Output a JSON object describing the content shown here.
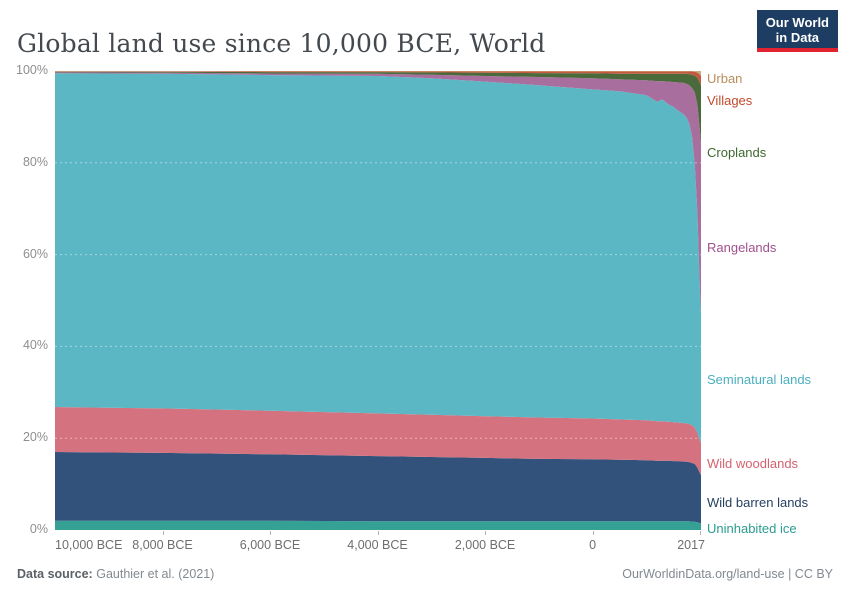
{
  "header": {
    "title": "Global land use since 10,000 BCE, World"
  },
  "logo": {
    "line1": "Our World",
    "line2": "in Data",
    "bg": "#1d3d63",
    "accent": "#e0232e"
  },
  "chart_data": {
    "type": "area",
    "stacked": true,
    "title": "Global land use since 10,000 BCE, World",
    "xlabel": "",
    "ylabel": "",
    "unit": "%",
    "ylim": [
      0,
      100
    ],
    "xlim": [
      -10000,
      2017
    ],
    "grid": "dashed horizontal at 20/40/60/80%",
    "legend_position": "right, colored text labels",
    "x": [
      -10000,
      -8000,
      -6000,
      -4000,
      -3000,
      -2000,
      -1000,
      0,
      500,
      1000,
      1200,
      1300,
      1400,
      1500,
      1600,
      1700,
      1750,
      1800,
      1850,
      1900,
      1950,
      1980,
      2000,
      2017
    ],
    "series": [
      {
        "name": "Uninhabited ice",
        "color": "#35a094",
        "values": [
          2.0,
          2.0,
          2.0,
          1.9,
          1.9,
          1.9,
          1.9,
          1.9,
          1.9,
          1.9,
          1.9,
          1.9,
          1.9,
          1.9,
          1.9,
          1.9,
          1.9,
          1.9,
          1.8,
          1.8,
          1.7,
          1.6,
          1.5,
          1.5
        ]
      },
      {
        "name": "Wild barren lands",
        "color": "#33527b",
        "values": [
          15.0,
          14.8,
          14.5,
          14.2,
          14.0,
          13.8,
          13.6,
          13.5,
          13.4,
          13.3,
          13.2,
          13.2,
          13.2,
          13.1,
          13.1,
          13.0,
          13.0,
          12.9,
          12.8,
          12.6,
          11.9,
          11.2,
          10.8,
          10.5
        ]
      },
      {
        "name": "Wild woodlands",
        "color": "#d5727f",
        "values": [
          9.8,
          9.7,
          9.5,
          9.3,
          9.2,
          9.1,
          9.0,
          8.9,
          8.8,
          8.7,
          8.6,
          8.6,
          8.5,
          8.5,
          8.4,
          8.4,
          8.3,
          8.3,
          8.2,
          8.0,
          7.6,
          7.2,
          7.1,
          7.0
        ]
      },
      {
        "name": "Seminatural lands",
        "color": "#5bb7c4",
        "values": [
          72.7,
          72.9,
          73.1,
          73.5,
          73.3,
          72.9,
          72.4,
          71.7,
          71.5,
          70.85,
          69.6,
          70.1,
          69.2,
          68.7,
          67.9,
          67.2,
          66.6,
          65.4,
          63.0,
          57.5,
          48.0,
          38.0,
          32.0,
          28.0
        ]
      },
      {
        "name": "Rangelands",
        "color": "#a86f9e",
        "values": [
          0.2,
          0.25,
          0.35,
          0.5,
          0.8,
          1.2,
          1.8,
          2.4,
          2.6,
          3.25,
          4.5,
          4.0,
          4.9,
          5.4,
          6.2,
          6.9,
          7.4,
          8.4,
          10.5,
          15.5,
          23.5,
          31.0,
          35.0,
          37.0
        ]
      },
      {
        "name": "Croplands",
        "color": "#4b6a3b",
        "values": [
          0.15,
          0.2,
          0.3,
          0.35,
          0.5,
          0.7,
          0.85,
          1.1,
          1.2,
          1.4,
          1.6,
          1.6,
          1.7,
          1.8,
          1.9,
          2.0,
          2.2,
          2.4,
          2.9,
          3.6,
          5.8,
          8.8,
          10.9,
          12.8
        ]
      },
      {
        "name": "Villages",
        "color": "#c25b3e",
        "values": [
          0.1,
          0.1,
          0.2,
          0.2,
          0.25,
          0.35,
          0.4,
          0.45,
          0.55,
          0.55,
          0.55,
          0.55,
          0.55,
          0.55,
          0.55,
          0.55,
          0.55,
          0.6,
          0.7,
          0.85,
          1.2,
          1.6,
          1.9,
          2.2
        ]
      },
      {
        "name": "Urban",
        "color": "#ccab80",
        "values": [
          0.05,
          0.05,
          0.05,
          0.05,
          0.05,
          0.05,
          0.05,
          0.05,
          0.05,
          0.05,
          0.05,
          0.05,
          0.05,
          0.05,
          0.05,
          0.05,
          0.05,
          0.1,
          0.1,
          0.15,
          0.3,
          0.6,
          0.8,
          1.0
        ]
      }
    ],
    "xticks": [
      -10000,
      -8000,
      -6000,
      -4000,
      -2000,
      0,
      2017
    ],
    "xtick_labels": [
      "10,000 BCE",
      "8,000 BCE",
      "6,000 BCE",
      "4,000 BCE",
      "2,000 BCE",
      "0",
      "2017"
    ],
    "yticks": [
      0,
      20,
      40,
      60,
      80,
      100
    ],
    "ytick_labels": [
      "0%",
      "20%",
      "40%",
      "60%",
      "80%",
      "100%"
    ]
  },
  "legend": {
    "items": [
      {
        "label": "Urban",
        "color": "#b78e5b"
      },
      {
        "label": "Villages",
        "color": "#bf4a2b"
      },
      {
        "label": "Croplands",
        "color": "#3e692f"
      },
      {
        "label": "Rangelands",
        "color": "#a1518f"
      },
      {
        "label": "Seminatural lands",
        "color": "#4aafbe"
      },
      {
        "label": "Wild woodlands",
        "color": "#d4626f"
      },
      {
        "label": "Wild barren lands",
        "color": "#27415f"
      },
      {
        "label": "Uninhabited ice",
        "color": "#2a9c8f"
      }
    ]
  },
  "footer": {
    "source_label": "Data source:",
    "source_value": "Gauthier et al. (2021)",
    "url": "OurWorldinData.org/land-use",
    "separator": " | ",
    "license": "CC BY"
  }
}
